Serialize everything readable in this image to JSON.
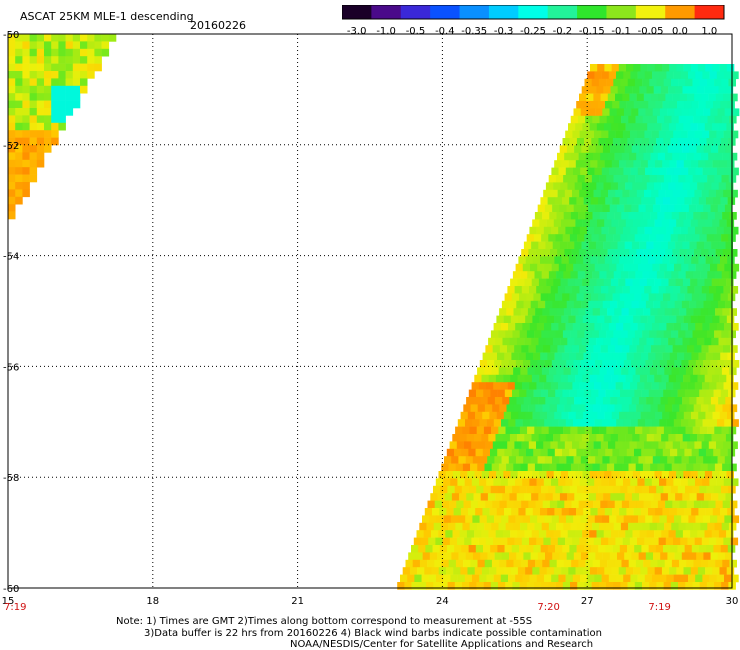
{
  "header": {
    "title": "ASCAT 25KM MLE-1 descending",
    "date": "20160226"
  },
  "colorbar": {
    "labels": [
      "-3.0",
      "-1.0",
      "-0.5",
      "-0.4",
      "-0.35",
      "-0.3",
      "-0.25",
      "-0.2",
      "-0.15",
      "-0.1",
      "-0.05",
      "0.0",
      "1.0"
    ],
    "colors": [
      "#1a0028",
      "#4a0a8a",
      "#3a28d8",
      "#0a52ff",
      "#0a90ff",
      "#00ccff",
      "#00ffe8",
      "#22f39a",
      "#2fe62c",
      "#8ce61c",
      "#f2f20e",
      "#ff9a00",
      "#ff2a10"
    ]
  },
  "map": {
    "lat_labels": [
      "-50",
      "-52",
      "-54",
      "-56",
      "-58",
      "-60"
    ],
    "lon_labels": [
      "15",
      "18",
      "21",
      "24",
      "27",
      "30"
    ],
    "lon_range": [
      15,
      30
    ],
    "lat_range": [
      -50,
      -60
    ],
    "pass_times": [
      "7:19",
      "7:20",
      "7:19"
    ]
  },
  "footer": {
    "line1": "Note: 1) Times are GMT 2)Times along bottom correspond to measurement at -55S",
    "line2": "3)Data buffer is 22 hrs from 20160226 4) Black wind barbs indicate possible contamination",
    "line3": "NOAA/NESDIS/Center for Satellite Applications and Research"
  }
}
